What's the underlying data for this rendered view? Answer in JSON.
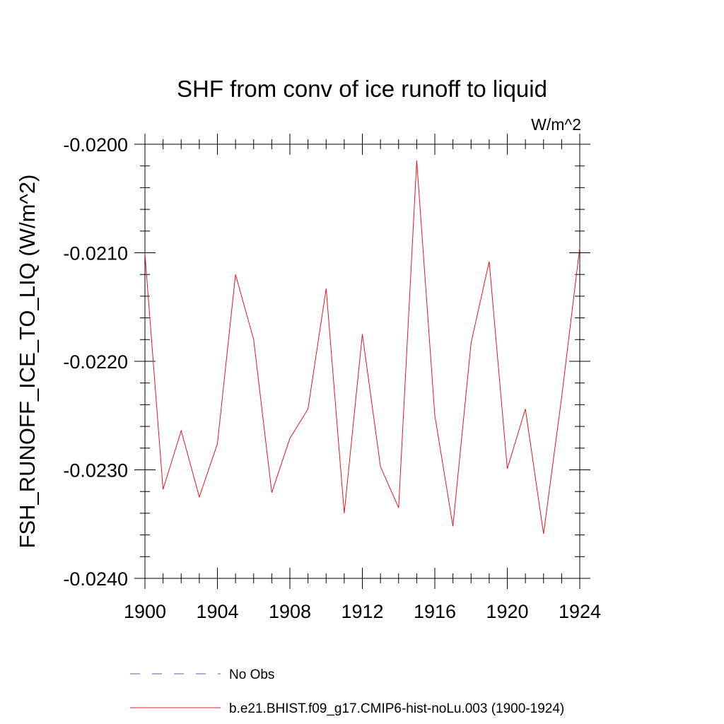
{
  "chart_data": {
    "type": "line",
    "title": "SHF from conv of ice runoff to liquid",
    "units_label": "W/m^2",
    "ylabel": "FSH_RUNOFF_ICE_TO_LIQ  (W/m^2)",
    "xlabel": "",
    "xlim": [
      1900,
      1924
    ],
    "ylim": [
      -0.024,
      -0.02
    ],
    "x_ticks": [
      1900,
      1904,
      1908,
      1912,
      1916,
      1920,
      1924
    ],
    "x_tick_labels": [
      "1900",
      "1904",
      "1908",
      "1912",
      "1916",
      "1920",
      "1924"
    ],
    "y_ticks": [
      -0.024,
      -0.023,
      -0.022,
      -0.021,
      -0.02
    ],
    "y_tick_labels": [
      "-0.0240",
      "-0.0230",
      "-0.0220",
      "-0.0210",
      "-0.0200"
    ],
    "grid": false,
    "legend_position": "bottom",
    "legend": [
      {
        "label": "No Obs",
        "style": "dashed",
        "color": "#5a5ab4"
      },
      {
        "label": "b.e21.BHIST.f09_g17.CMIP6-hist-noLu.003 (1900-1924)",
        "style": "solid",
        "color": "#e8141e"
      }
    ],
    "series": [
      {
        "name": "b.e21.BHIST.f09_g17.CMIP6-hist-noLu.003 (1900-1924)",
        "color": "#e8141e",
        "x": [
          1900,
          1901,
          1902,
          1903,
          1904,
          1905,
          1906,
          1907,
          1908,
          1909,
          1910,
          1911,
          1912,
          1913,
          1914,
          1915,
          1916,
          1917,
          1918,
          1919,
          1920,
          1921,
          1922,
          1923,
          1924
        ],
        "y": [
          -0.02101,
          -0.02318,
          -0.02264,
          -0.02325,
          -0.02276,
          -0.0212,
          -0.0218,
          -0.02321,
          -0.02271,
          -0.02244,
          -0.02133,
          -0.0234,
          -0.02175,
          -0.02297,
          -0.02335,
          -0.02015,
          -0.0225,
          -0.02352,
          -0.02183,
          -0.02108,
          -0.02299,
          -0.02244,
          -0.02359,
          -0.02233,
          -0.02095
        ]
      }
    ]
  }
}
